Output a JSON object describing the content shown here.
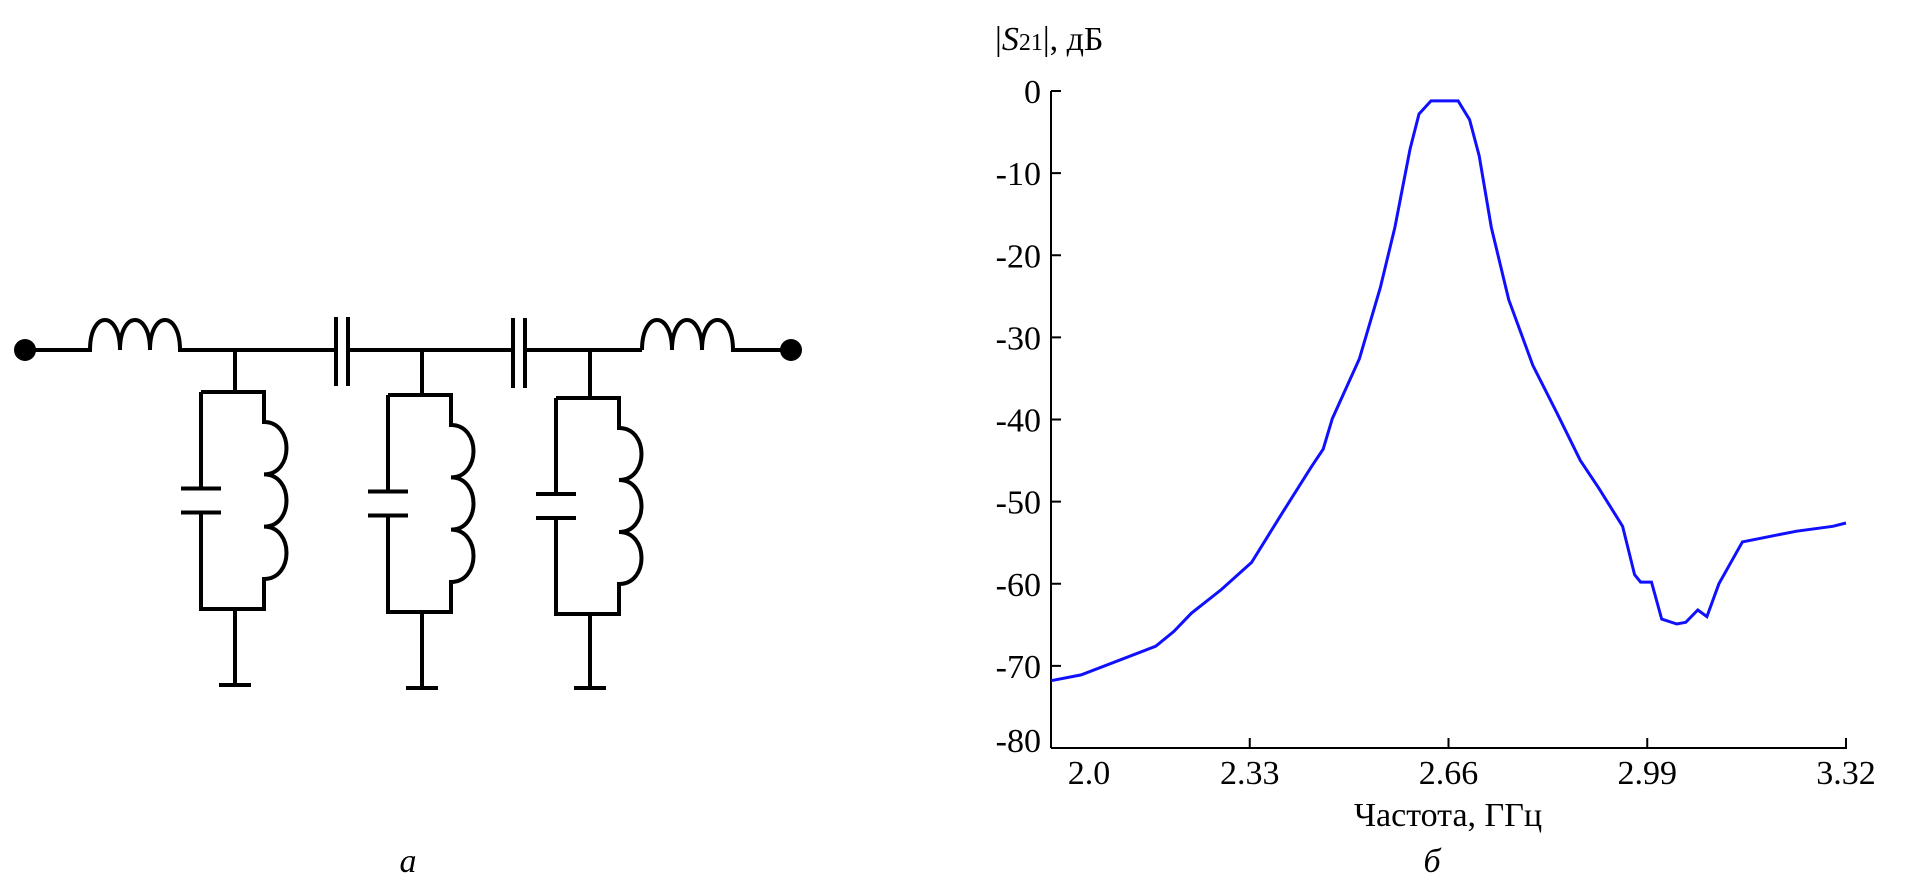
{
  "captions": {
    "left": "а",
    "right": "б"
  },
  "circuit": {
    "description_icon": "lc-bandpass-filter-schematic"
  },
  "chart_data": {
    "type": "line",
    "title": "",
    "ylabel_parts": {
      "pre": "|",
      "S": "S",
      "sub": "21",
      "post": "|, дБ"
    },
    "xlabel": "Частота, ГГц",
    "xlim": [
      2.0,
      3.32
    ],
    "ylim": [
      -80,
      0
    ],
    "xticks": [
      "2.0",
      "2.33",
      "2.66",
      "2.99",
      "3.32"
    ],
    "xtick_values": [
      2.0,
      2.33,
      2.66,
      2.99,
      3.32
    ],
    "yticks": [
      "0",
      "-10",
      "-20",
      "-30",
      "-40",
      "-50",
      "-60",
      "-70",
      "-80"
    ],
    "ytick_values": [
      0,
      -10,
      -20,
      -30,
      -40,
      -50,
      -60,
      -70,
      -80
    ],
    "grid": false,
    "color": "#1010ff",
    "series": [
      {
        "x": [
          2.0,
          2.05,
          2.174,
          2.204,
          2.233,
          2.283,
          2.333,
          2.382,
          2.432,
          2.452,
          2.467,
          2.512,
          2.547,
          2.571,
          2.596,
          2.611,
          2.631,
          2.676,
          2.695,
          2.711,
          2.731,
          2.76,
          2.8,
          2.84,
          2.879,
          2.909,
          2.949,
          2.969,
          2.979,
          2.997,
          3.014,
          3.039,
          3.054,
          3.074,
          3.089,
          3.109,
          3.148,
          3.203,
          3.238,
          3.298,
          3.32
        ],
        "y": [
          -71.8,
          -71.1,
          -67.6,
          -65.8,
          -63.6,
          -60.7,
          -57.4,
          -51.6,
          -45.8,
          -43.6,
          -39.9,
          -32.6,
          -23.9,
          -16.6,
          -7.1,
          -2.8,
          -1.2,
          -1.2,
          -3.5,
          -7.9,
          -16.6,
          -25.4,
          -33.4,
          -39.2,
          -45.0,
          -48.3,
          -53.0,
          -58.9,
          -59.8,
          -59.8,
          -64.3,
          -64.9,
          -64.7,
          -63.2,
          -64.0,
          -60.0,
          -54.9,
          -54.1,
          -53.6,
          -53.0,
          -52.6
        ]
      }
    ]
  }
}
